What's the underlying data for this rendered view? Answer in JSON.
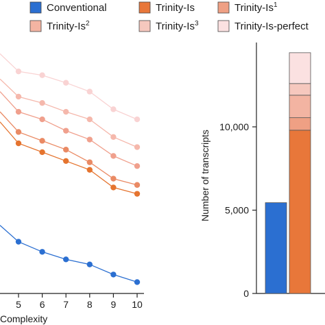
{
  "legend": [
    {
      "base": "Conventional",
      "sup": "",
      "color": "#2b6fd1",
      "row": 0,
      "col": 0
    },
    {
      "base": "Trinity-Is",
      "sup": "",
      "color": "#e8773a",
      "row": 0,
      "col": 1
    },
    {
      "base": "Trinity-Is",
      "sup": "1",
      "color": "#efa084",
      "row": 0,
      "col": 2
    },
    {
      "base": "Trinity-Is",
      "sup": "2",
      "color": "#f3b4a2",
      "row": 1,
      "col": 0
    },
    {
      "base": "Trinity-Is",
      "sup": "3",
      "color": "#f6c8be",
      "row": 1,
      "col": 1
    },
    {
      "base": "Trinity-Is-perfect",
      "sup": "",
      "color": "#fbe1e1",
      "row": 1,
      "col": 2
    }
  ],
  "chart_data": [
    {
      "type": "line",
      "xlabel": "Complexity",
      "ylabel": "",
      "x": [
        5,
        6,
        7,
        8,
        9,
        10
      ],
      "x_tick_labels": [
        "5",
        "6",
        "7",
        "8",
        "9",
        "10"
      ],
      "xlim": [
        4,
        10.5
      ],
      "ylim": [
        0,
        1
      ],
      "note": "y axis unlabeled in visible region; values are relative heights",
      "series": [
        {
          "name": "Trinity-Is-perfect",
          "color": "#f9d3d3",
          "start_y": 0.95,
          "values": [
            0.88,
            0.865,
            0.835,
            0.8,
            0.73,
            0.69
          ]
        },
        {
          "name": "Trinity-Is³",
          "color": "#f5b8ac",
          "start_y": 0.85,
          "values": [
            0.78,
            0.755,
            0.72,
            0.69,
            0.62,
            0.58
          ]
        },
        {
          "name": "Trinity-Is²",
          "color": "#f0a08d",
          "start_y": 0.8,
          "values": [
            0.72,
            0.69,
            0.645,
            0.61,
            0.545,
            0.505
          ]
        },
        {
          "name": "Trinity-Is¹",
          "color": "#ea8a64",
          "start_y": 0.72,
          "values": [
            0.64,
            0.605,
            0.57,
            0.52,
            0.455,
            0.43
          ]
        },
        {
          "name": "Trinity-Is",
          "color": "#e5742f",
          "start_y": 0.68,
          "values": [
            0.595,
            0.56,
            0.525,
            0.49,
            0.42,
            0.395
          ]
        },
        {
          "name": "Conventional",
          "color": "#2b6fd1",
          "start_y": 0.27,
          "values": [
            0.205,
            0.165,
            0.135,
            0.115,
            0.075,
            0.045
          ]
        }
      ]
    },
    {
      "type": "bar",
      "ylabel": "Number of transcripts",
      "ylim": [
        0,
        14500
      ],
      "y_ticks": [
        0,
        5000,
        10000
      ],
      "y_tick_labels": [
        "0",
        "5,000",
        "10,000"
      ],
      "bars": [
        {
          "name": "Conventional",
          "segments": [
            {
              "name": "Conventional",
              "value": 5450,
              "color": "#2b6fd1"
            }
          ]
        },
        {
          "name": "Trinity-Is",
          "segments": [
            {
              "name": "Trinity-Is",
              "value": 9800,
              "color": "#e8773a"
            },
            {
              "name": "Trinity-Is¹",
              "value": 750,
              "color": "#efa084"
            },
            {
              "name": "Trinity-Is²",
              "value": 1350,
              "color": "#f3b4a2"
            },
            {
              "name": "Trinity-Is³",
              "value": 700,
              "color": "#f6c8be"
            },
            {
              "name": "Trinity-Is-perfect",
              "value": 1850,
              "color": "#fbe1e1"
            }
          ]
        }
      ]
    }
  ]
}
